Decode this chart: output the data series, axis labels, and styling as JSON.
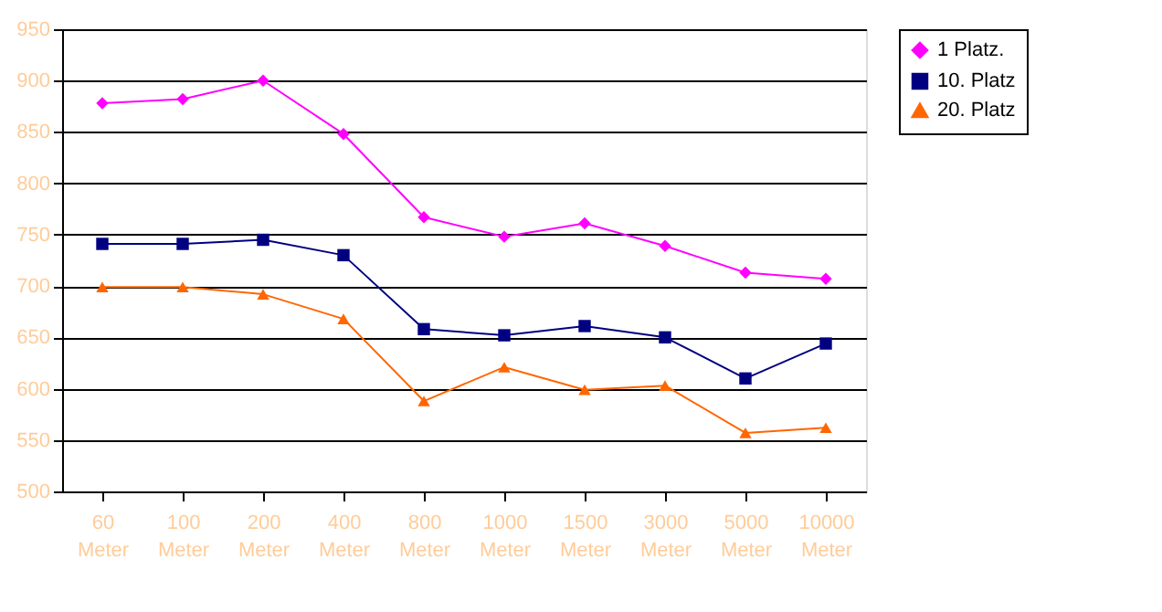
{
  "chart_data": {
    "type": "line",
    "categories": [
      "60 Meter",
      "100 Meter",
      "200 Meter",
      "400 Meter",
      "800 Meter",
      "1000 Meter",
      "1500 Meter",
      "3000 Meter",
      "5000 Meter",
      "10000 Meter"
    ],
    "series": [
      {
        "name": "1 Platz.",
        "color": "#ff00ff",
        "marker": "diamond",
        "values": [
          878,
          882,
          900,
          848,
          767,
          748,
          761,
          739,
          713,
          707
        ]
      },
      {
        "name": "10. Platz",
        "color": "#000080",
        "marker": "square",
        "values": [
          741,
          741,
          745,
          730,
          658,
          652,
          661,
          650,
          610,
          644
        ]
      },
      {
        "name": "20. Platz",
        "color": "#ff6600",
        "marker": "triangle",
        "values": [
          699,
          699,
          692,
          668,
          588,
          621,
          599,
          603,
          557,
          562
        ]
      }
    ],
    "ylim": [
      500,
      950
    ],
    "yticks": [
      500,
      550,
      600,
      650,
      700,
      750,
      800,
      850,
      900,
      950
    ],
    "grid": "y",
    "legend": "right",
    "line_style": "solid"
  }
}
